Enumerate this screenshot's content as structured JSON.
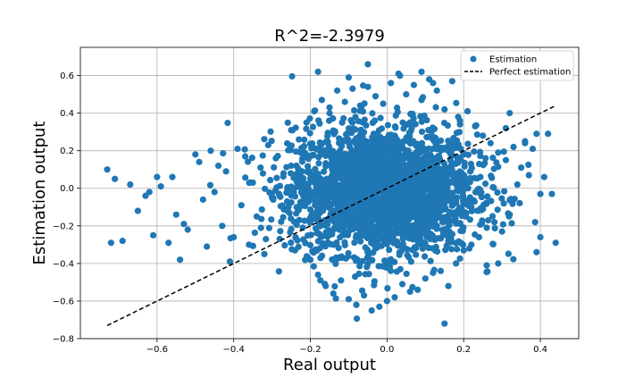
{
  "chart_data": {
    "type": "scatter",
    "title": "R^2=-2.3979",
    "xlabel": "Real output",
    "ylabel": "Estimation output",
    "xlim": [
      -0.8,
      0.5
    ],
    "ylim": [
      -0.8,
      0.75
    ],
    "xticks": [
      -0.6,
      -0.4,
      -0.2,
      0.0,
      0.2,
      0.4
    ],
    "xtick_labels": [
      "−0.6",
      "−0.4",
      "−0.2",
      "0.0",
      "0.2",
      "0.4"
    ],
    "yticks": [
      -0.8,
      -0.6,
      -0.4,
      -0.2,
      0.0,
      0.2,
      0.4,
      0.6
    ],
    "ytick_labels": [
      "−0.8",
      "−0.6",
      "−0.4",
      "−0.2",
      "0.0",
      "0.2",
      "0.4",
      "0.6"
    ],
    "grid": true,
    "legend_position": "top-right",
    "series": [
      {
        "name": "Estimation",
        "kind": "scatter",
        "color": "#1f77b4",
        "points": [
          [
            -0.73,
            0.1
          ],
          [
            -0.71,
            0.05
          ],
          [
            -0.69,
            -0.28
          ],
          [
            -0.72,
            -0.29
          ],
          [
            -0.67,
            0.02
          ],
          [
            -0.65,
            -0.12
          ],
          [
            -0.63,
            -0.04
          ],
          [
            -0.62,
            -0.02
          ],
          [
            -0.6,
            0.06
          ],
          [
            -0.59,
            0.01
          ],
          [
            -0.61,
            -0.25
          ],
          [
            -0.57,
            -0.29
          ],
          [
            -0.56,
            0.06
          ],
          [
            -0.55,
            -0.14
          ],
          [
            -0.54,
            -0.38
          ],
          [
            -0.53,
            -0.19
          ],
          [
            -0.52,
            -0.22
          ],
          [
            -0.5,
            0.18
          ],
          [
            -0.49,
            0.14
          ],
          [
            -0.48,
            -0.06
          ],
          [
            -0.47,
            -0.31
          ],
          [
            -0.46,
            0.2
          ],
          [
            -0.45,
            -0.02
          ],
          [
            -0.44,
            0.12
          ],
          [
            -0.43,
            -0.2
          ],
          [
            -0.42,
            0.09
          ],
          [
            -0.41,
            -0.39
          ],
          [
            -0.4,
            -0.26
          ],
          [
            -0.39,
            0.21
          ],
          [
            -0.38,
            -0.09
          ],
          [
            -0.37,
            0.17
          ],
          [
            -0.36,
            -0.3
          ],
          [
            -0.35,
            0.03
          ],
          [
            -0.34,
            -0.15
          ],
          [
            -0.33,
            0.11
          ],
          [
            -0.32,
            -0.35
          ],
          [
            -0.31,
            0.23
          ],
          [
            -0.3,
            -0.05
          ],
          [
            -0.29,
            0.16
          ],
          [
            -0.28,
            -0.27
          ],
          [
            -0.27,
            0.08
          ],
          [
            -0.26,
            -0.12
          ],
          [
            -0.25,
            0.31
          ],
          [
            -0.24,
            -0.33
          ],
          [
            -0.23,
            0.26
          ],
          [
            -0.22,
            -0.21
          ],
          [
            -0.21,
            0.35
          ],
          [
            -0.2,
            -0.38
          ],
          [
            -0.19,
            0.41
          ],
          [
            -0.18,
            -0.46
          ],
          [
            -0.17,
            0.47
          ],
          [
            -0.16,
            -0.52
          ],
          [
            -0.15,
            0.43
          ],
          [
            -0.14,
            -0.56
          ],
          [
            -0.13,
            0.52
          ],
          [
            -0.12,
            -0.49
          ],
          [
            -0.11,
            0.46
          ],
          [
            -0.1,
            -0.59
          ],
          [
            -0.09,
            0.53
          ],
          [
            -0.08,
            -0.62
          ],
          [
            -0.07,
            0.44
          ],
          [
            -0.06,
            -0.57
          ],
          [
            -0.05,
            0.54
          ],
          [
            -0.04,
            -0.65
          ],
          [
            -0.03,
            0.49
          ],
          [
            -0.02,
            -0.63
          ],
          [
            -0.01,
            0.45
          ],
          [
            0.0,
            -0.6
          ],
          [
            0.01,
            0.56
          ],
          [
            0.02,
            -0.58
          ],
          [
            0.03,
            0.61
          ],
          [
            0.04,
            -0.51
          ],
          [
            0.05,
            0.5
          ],
          [
            0.06,
            -0.55
          ],
          [
            0.07,
            0.55
          ],
          [
            0.08,
            -0.54
          ],
          [
            0.09,
            0.47
          ],
          [
            0.1,
            -0.48
          ],
          [
            0.11,
            0.58
          ],
          [
            0.12,
            -0.45
          ],
          [
            0.13,
            0.52
          ],
          [
            0.14,
            -0.44
          ],
          [
            0.15,
            0.42
          ],
          [
            0.16,
            -0.52
          ],
          [
            0.17,
            0.57
          ],
          [
            0.18,
            -0.4
          ],
          [
            0.19,
            0.36
          ],
          [
            0.2,
            -0.33
          ],
          [
            0.21,
            0.41
          ],
          [
            0.22,
            -0.3
          ],
          [
            0.23,
            0.33
          ],
          [
            0.24,
            -0.26
          ],
          [
            0.25,
            0.28
          ],
          [
            0.26,
            -0.21
          ],
          [
            0.27,
            0.24
          ],
          [
            0.28,
            -0.18
          ],
          [
            0.29,
            0.19
          ],
          [
            0.3,
            -0.23
          ],
          [
            0.31,
            0.15
          ],
          [
            0.32,
            -0.14
          ],
          [
            0.33,
            0.22
          ],
          [
            0.34,
            0.02
          ],
          [
            0.35,
            0.11
          ],
          [
            0.36,
            0.25
          ],
          [
            0.37,
            0.07
          ],
          [
            0.38,
            0.21
          ],
          [
            0.39,
            0.29
          ],
          [
            0.4,
            -0.03
          ],
          [
            0.41,
            0.06
          ],
          [
            0.42,
            0.29
          ],
          [
            0.43,
            -0.03
          ],
          [
            0.44,
            -0.29
          ],
          [
            0.4,
            -0.26
          ],
          [
            0.39,
            -0.34
          ],
          [
            0.15,
            -0.72
          ],
          [
            -0.1,
            0.59
          ],
          [
            -0.18,
            0.62
          ],
          [
            -0.05,
            0.66
          ],
          [
            0.09,
            0.62
          ],
          [
            0.12,
            0.56
          ],
          [
            0.32,
            0.4
          ],
          [
            0.29,
            -0.4
          ],
          [
            0.26,
            -0.41
          ],
          [
            0.36,
            0.24
          ],
          [
            0.31,
            0.32
          ],
          [
            -0.02,
            0.04
          ],
          [
            -0.1,
            0.1
          ],
          [
            0.05,
            -0.08
          ],
          [
            -0.15,
            -0.05
          ],
          [
            0.1,
            0.12
          ],
          [
            -0.05,
            -0.15
          ],
          [
            0.08,
            0.2
          ],
          [
            -0.12,
            0.18
          ],
          [
            0.14,
            -0.12
          ],
          [
            -0.2,
            0.05
          ],
          [
            0.18,
            0.02
          ],
          [
            -0.08,
            -0.25
          ],
          [
            0.02,
            0.28
          ],
          [
            -0.25,
            0.12
          ],
          [
            0.22,
            -0.1
          ],
          [
            -0.18,
            -0.18
          ],
          [
            0.12,
            0.26
          ],
          [
            -0.03,
            -0.32
          ],
          [
            0.06,
            0.35
          ],
          [
            -0.14,
            0.3
          ],
          [
            0.16,
            -0.28
          ],
          [
            -0.22,
            -0.08
          ],
          [
            0.2,
            0.18
          ],
          [
            -0.06,
            0.22
          ],
          [
            0.0,
            -0.22
          ]
        ]
      },
      {
        "name": "Perfect estimation",
        "kind": "line",
        "style": "dashed",
        "color": "#000000",
        "points": [
          [
            -0.73,
            -0.73
          ],
          [
            0.44,
            0.44
          ]
        ]
      }
    ]
  }
}
